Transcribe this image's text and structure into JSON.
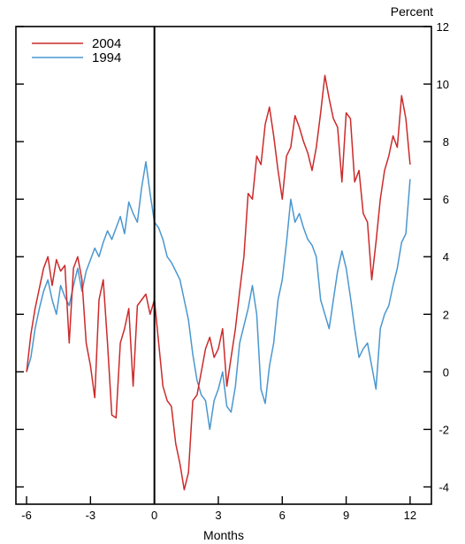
{
  "chart_data": {
    "type": "line",
    "title": "",
    "xlabel": "Months",
    "ylabel": "Percent",
    "xlim": [
      -6.5,
      13
    ],
    "ylim": [
      -4.6,
      12
    ],
    "x_ticks": [
      -6,
      -3,
      0,
      3,
      6,
      9,
      12
    ],
    "x_tick_labels": [
      "-6",
      "-3",
      "0",
      "3",
      "6",
      "9",
      "12"
    ],
    "y_ticks": [
      -4,
      -2,
      0,
      2,
      4,
      6,
      8,
      10,
      12
    ],
    "y_tick_labels": [
      "-4",
      "-2",
      "0",
      "2",
      "4",
      "6",
      "8",
      "10",
      "12"
    ],
    "zero_line_x": 0,
    "grid": false,
    "legend_position": "top-left",
    "colors": {
      "2004": "#cc2a2a",
      "1994": "#4a97cf"
    },
    "series": [
      {
        "name": "2004",
        "color": "#cc2a2a",
        "x": [
          -6.0,
          -5.8,
          -5.6,
          -5.4,
          -5.2,
          -5.0,
          -4.8,
          -4.6,
          -4.4,
          -4.2,
          -4.0,
          -3.8,
          -3.6,
          -3.4,
          -3.2,
          -3.0,
          -2.8,
          -2.6,
          -2.4,
          -2.2,
          -2.0,
          -1.8,
          -1.6,
          -1.4,
          -1.2,
          -1.0,
          -0.8,
          -0.6,
          -0.4,
          -0.2,
          0.0,
          0.2,
          0.4,
          0.6,
          0.8,
          1.0,
          1.2,
          1.4,
          1.6,
          1.8,
          2.0,
          2.2,
          2.4,
          2.6,
          2.8,
          3.0,
          3.2,
          3.4,
          3.6,
          3.8,
          4.0,
          4.2,
          4.4,
          4.6,
          4.8,
          5.0,
          5.2,
          5.4,
          5.6,
          5.8,
          6.0,
          6.2,
          6.4,
          6.6,
          6.8,
          7.0,
          7.2,
          7.4,
          7.6,
          7.8,
          8.0,
          8.2,
          8.4,
          8.6,
          8.8,
          9.0,
          9.2,
          9.4,
          9.6,
          9.8,
          10.0,
          10.2,
          10.4,
          10.6,
          10.8,
          11.0,
          11.2,
          11.4,
          11.6,
          11.8,
          12.0
        ],
        "y": [
          0.0,
          1.3,
          2.2,
          2.9,
          3.6,
          4.0,
          3.0,
          3.9,
          3.5,
          3.7,
          1.0,
          3.6,
          4.0,
          3.2,
          1.0,
          0.2,
          -0.9,
          2.5,
          3.2,
          1.0,
          -1.5,
          -1.6,
          1.0,
          1.5,
          2.2,
          -0.5,
          2.3,
          2.5,
          2.7,
          2.0,
          2.5,
          1.0,
          -0.5,
          -1.0,
          -1.2,
          -2.5,
          -3.2,
          -4.1,
          -3.5,
          -1.0,
          -0.8,
          0.0,
          0.8,
          1.2,
          0.5,
          0.8,
          1.5,
          -0.5,
          0.5,
          1.5,
          2.8,
          4.0,
          6.2,
          6.0,
          7.5,
          7.2,
          8.6,
          9.2,
          8.2,
          7.0,
          6.0,
          7.5,
          7.8,
          8.9,
          8.5,
          8.0,
          7.6,
          7.0,
          7.8,
          9.0,
          10.3,
          9.5,
          8.8,
          8.5,
          6.6,
          9.0,
          8.8,
          6.6,
          7.0,
          5.5,
          5.2,
          3.2,
          4.5,
          6.0,
          7.0,
          7.5,
          8.2,
          7.8,
          9.6,
          8.8,
          7.2
        ]
      },
      {
        "name": "1994",
        "color": "#4a97cf",
        "x": [
          -6.0,
          -5.8,
          -5.6,
          -5.4,
          -5.2,
          -5.0,
          -4.8,
          -4.6,
          -4.4,
          -4.2,
          -4.0,
          -3.8,
          -3.6,
          -3.4,
          -3.2,
          -3.0,
          -2.8,
          -2.6,
          -2.4,
          -2.2,
          -2.0,
          -1.8,
          -1.6,
          -1.4,
          -1.2,
          -1.0,
          -0.8,
          -0.6,
          -0.4,
          -0.2,
          0.0,
          0.2,
          0.4,
          0.6,
          0.8,
          1.0,
          1.2,
          1.4,
          1.6,
          1.8,
          2.0,
          2.2,
          2.4,
          2.6,
          2.8,
          3.0,
          3.2,
          3.4,
          3.6,
          3.8,
          4.0,
          4.2,
          4.4,
          4.6,
          4.8,
          5.0,
          5.2,
          5.4,
          5.6,
          5.8,
          6.0,
          6.2,
          6.4,
          6.6,
          6.8,
          7.0,
          7.2,
          7.4,
          7.6,
          7.8,
          8.0,
          8.2,
          8.4,
          8.6,
          8.8,
          9.0,
          9.2,
          9.4,
          9.6,
          9.8,
          10.0,
          10.2,
          10.4,
          10.6,
          10.8,
          11.0,
          11.2,
          11.4,
          11.6,
          11.8,
          12.0
        ],
        "y": [
          0.0,
          0.5,
          1.5,
          2.2,
          2.8,
          3.2,
          2.5,
          2.0,
          3.0,
          2.6,
          2.3,
          3.0,
          3.6,
          2.8,
          3.5,
          3.9,
          4.3,
          4.0,
          4.5,
          4.9,
          4.6,
          5.0,
          5.4,
          4.8,
          5.9,
          5.5,
          5.2,
          6.4,
          7.3,
          6.2,
          5.2,
          5.0,
          4.6,
          4.0,
          3.8,
          3.5,
          3.2,
          2.5,
          1.8,
          0.6,
          -0.3,
          -0.8,
          -1.0,
          -2.0,
          -1.0,
          -0.6,
          0.0,
          -1.2,
          -1.4,
          -0.5,
          1.0,
          1.6,
          2.2,
          3.0,
          2.0,
          -0.6,
          -1.1,
          0.2,
          1.0,
          2.5,
          3.2,
          4.5,
          6.0,
          5.2,
          5.5,
          5.0,
          4.6,
          4.4,
          4.0,
          2.5,
          2.0,
          1.5,
          2.5,
          3.5,
          4.2,
          3.6,
          2.6,
          1.5,
          0.5,
          0.8,
          1.0,
          0.2,
          -0.6,
          1.5,
          2.0,
          2.3,
          3.0,
          3.6,
          4.5,
          4.8,
          6.7
        ]
      }
    ]
  }
}
